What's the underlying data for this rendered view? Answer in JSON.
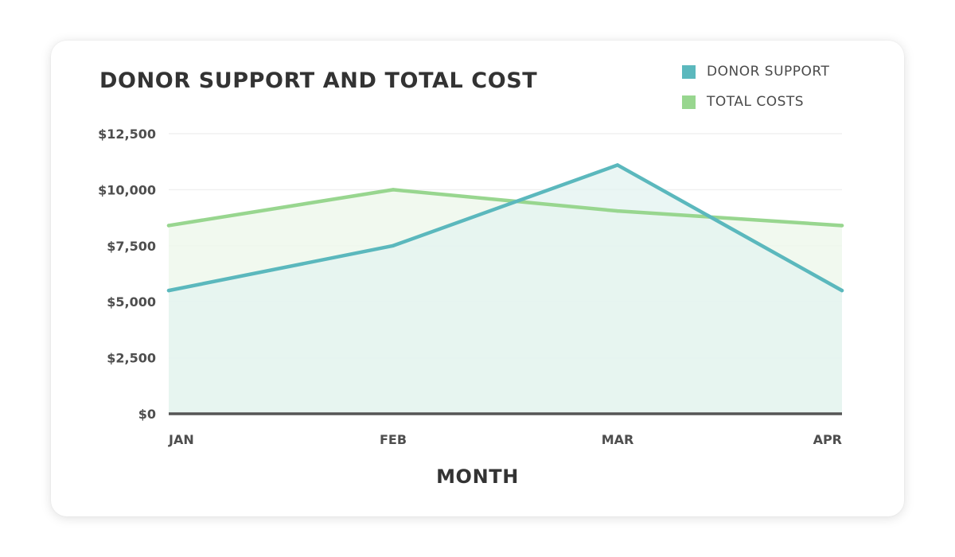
{
  "colors": {
    "donor": "#5bb8bd",
    "costs": "#98d68f",
    "baseline": "#555555",
    "grid": "#f0f0f0",
    "donor_fill": "#e3f3f0",
    "costs_fill": "#eef8ec"
  },
  "chart_data": {
    "type": "area",
    "title": "DONOR SUPPORT AND TOTAL COST",
    "xlabel": "MONTH",
    "ylabel": "",
    "categories": [
      "JAN",
      "FEB",
      "MAR",
      "APR"
    ],
    "yticks": [
      "$0",
      "$2,500",
      "$5,000",
      "$7,500",
      "$10,000",
      "$12,500"
    ],
    "ytick_values": [
      0,
      2500,
      5000,
      7500,
      10000,
      12500
    ],
    "ylim": [
      0,
      12500
    ],
    "grid": true,
    "legend_position": "top-right",
    "series": [
      {
        "name": "DONOR SUPPORT",
        "values": [
          5500,
          7500,
          11100,
          5500
        ]
      },
      {
        "name": "TOTAL COSTS",
        "values": [
          8400,
          10000,
          9050,
          8400
        ]
      }
    ]
  }
}
